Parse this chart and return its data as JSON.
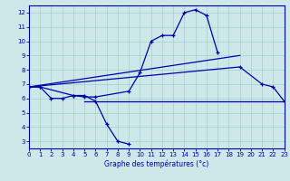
{
  "xlabel": "Graphe des températures (°c)",
  "background_color": "#cce8e8",
  "grid_color": "#aacccc",
  "line_color": "#0000aa",
  "xlim": [
    0,
    23
  ],
  "ylim": [
    2.5,
    12.5
  ],
  "yticks": [
    3,
    4,
    5,
    6,
    7,
    8,
    9,
    10,
    11,
    12
  ],
  "xticks": [
    0,
    1,
    2,
    3,
    4,
    5,
    6,
    7,
    8,
    9,
    10,
    11,
    12,
    13,
    14,
    15,
    16,
    17,
    18,
    19,
    20,
    21,
    22,
    23
  ],
  "series_marked": [
    {
      "x": [
        0,
        1,
        2,
        3,
        4,
        5,
        6,
        7,
        8,
        9
      ],
      "y": [
        6.8,
        6.8,
        6.0,
        6.0,
        6.2,
        6.2,
        5.8,
        4.2,
        3.0,
        2.8
      ]
    },
    {
      "x": [
        0,
        1,
        4,
        5,
        6,
        9,
        10,
        11,
        12,
        13,
        14,
        15,
        16,
        17
      ],
      "y": [
        6.8,
        6.8,
        6.2,
        6.1,
        6.1,
        6.5,
        7.8,
        10.0,
        10.4,
        10.4,
        12.0,
        12.2,
        11.8,
        9.2
      ]
    },
    {
      "x": [
        0,
        19,
        21,
        22,
        23
      ],
      "y": [
        6.8,
        8.2,
        7.0,
        6.8,
        5.8
      ]
    }
  ],
  "series_plain": [
    {
      "x": [
        5,
        23
      ],
      "y": [
        5.8,
        5.8
      ]
    },
    {
      "x": [
        0,
        19
      ],
      "y": [
        6.8,
        9.0
      ]
    }
  ]
}
